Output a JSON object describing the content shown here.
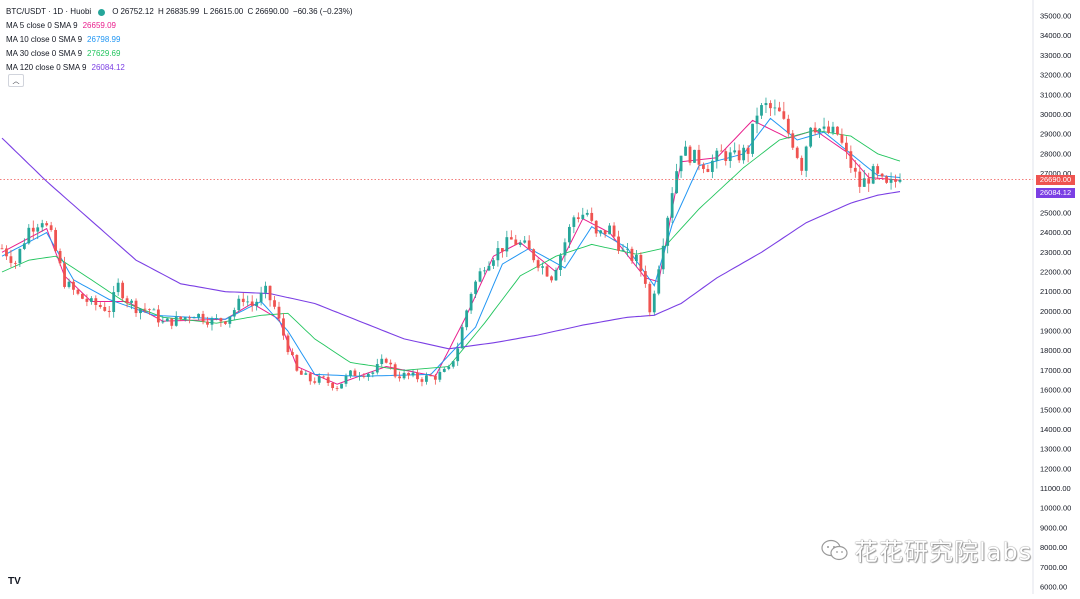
{
  "header": {
    "symbol": "BTC/USDT · 1D · Huobi",
    "ohlc": {
      "open_label": "O",
      "open": "26752.12",
      "high_label": "H",
      "high": "26835.99",
      "low_label": "L",
      "low": "26615.00",
      "close_label": "C",
      "close": "26690.00",
      "change": "−60.36 (−0.23%)"
    }
  },
  "indicators": [
    {
      "label": "MA 5 close 0 SMA 9",
      "value": "26659.09",
      "color": "#e91e8c"
    },
    {
      "label": "MA 10 close 0 SMA 9",
      "value": "26798.99",
      "color": "#2196f3"
    },
    {
      "label": "MA 30 close 0 SMA 9",
      "value": "27629.69",
      "color": "#22c55e"
    },
    {
      "label": "MA 120 close 0 SMA 9",
      "value": "26084.12",
      "color": "#7b3fe4"
    }
  ],
  "price_tags": [
    {
      "value": "26690.00",
      "color": "#ef5350"
    },
    {
      "value": "26084.12",
      "color": "#7b3fe4"
    }
  ],
  "collapse_icon": "chevron-up-icon",
  "watermark": "花花研究院labs",
  "logo_text": "TV",
  "colors": {
    "up": "#26a69a",
    "down": "#ef5350"
  },
  "chart_data": {
    "type": "candlestick",
    "ylim": [
      6000,
      35500
    ],
    "y_ticks": [
      "35000.00",
      "34000.00",
      "33000.00",
      "32000.00",
      "31000.00",
      "30000.00",
      "29000.00",
      "28000.00",
      "27000.00",
      "26000.00",
      "25000.00",
      "24000.00",
      "23000.00",
      "22000.00",
      "21000.00",
      "20000.00",
      "19000.00",
      "18000.00",
      "17000.00",
      "16000.00",
      "15000.00",
      "14000.00",
      "13000.00",
      "12000.00",
      "11000.00",
      "10000.00",
      "9000.00",
      "8000.00",
      "7000.00",
      "6000.00"
    ],
    "last_price": 26690.0,
    "path_points": [
      [
        0,
        23200
      ],
      [
        3,
        22500
      ],
      [
        6,
        24200
      ],
      [
        9,
        24700
      ],
      [
        11,
        23800
      ],
      [
        14,
        21500
      ],
      [
        17,
        20800
      ],
      [
        20,
        20400
      ],
      [
        24,
        20100
      ],
      [
        26,
        21300
      ],
      [
        28,
        20600
      ],
      [
        30,
        20200
      ],
      [
        33,
        20100
      ],
      [
        36,
        19400
      ],
      [
        40,
        19600
      ],
      [
        43,
        19900
      ],
      [
        47,
        19500
      ],
      [
        50,
        19600
      ],
      [
        52,
        20100
      ],
      [
        54,
        20700
      ],
      [
        56,
        20300
      ],
      [
        59,
        21000
      ],
      [
        61,
        20200
      ],
      [
        63,
        18800
      ],
      [
        66,
        16900
      ],
      [
        69,
        16500
      ],
      [
        72,
        16500
      ],
      [
        75,
        16200
      ],
      [
        78,
        16800
      ],
      [
        80,
        16900
      ],
      [
        83,
        16900
      ],
      [
        86,
        17600
      ],
      [
        88,
        16800
      ],
      [
        91,
        16700
      ],
      [
        94,
        16600
      ],
      [
        97,
        16700
      ],
      [
        100,
        17000
      ],
      [
        102,
        18200
      ],
      [
        105,
        21000
      ],
      [
        108,
        22400
      ],
      [
        111,
        23100
      ],
      [
        114,
        23600
      ],
      [
        117,
        23300
      ],
      [
        120,
        22500
      ],
      [
        123,
        21800
      ],
      [
        125,
        22900
      ],
      [
        128,
        24800
      ],
      [
        131,
        25000
      ],
      [
        133,
        23800
      ],
      [
        136,
        24200
      ],
      [
        139,
        23000
      ],
      [
        142,
        22600
      ],
      [
        144,
        21600
      ],
      [
        145,
        19900
      ],
      [
        147,
        22400
      ],
      [
        150,
        26200
      ],
      [
        152,
        28200
      ],
      [
        155,
        27800
      ],
      [
        158,
        27400
      ],
      [
        161,
        28000
      ],
      [
        164,
        27800
      ],
      [
        167,
        28200
      ],
      [
        169,
        30100
      ],
      [
        171,
        30400
      ],
      [
        174,
        30000
      ],
      [
        177,
        28600
      ],
      [
        179,
        27400
      ],
      [
        181,
        29600
      ],
      [
        184,
        29100
      ],
      [
        187,
        29000
      ],
      [
        189,
        27900
      ],
      [
        192,
        26400
      ],
      [
        195,
        27000
      ],
      [
        198,
        26300
      ],
      [
        201,
        26750
      ]
    ],
    "ma_lines": {
      "ma5": [
        [
          0,
          23000
        ],
        [
          10,
          24200
        ],
        [
          14,
          21800
        ],
        [
          20,
          20500
        ],
        [
          28,
          20500
        ],
        [
          36,
          19500
        ],
        [
          50,
          19600
        ],
        [
          56,
          20400
        ],
        [
          62,
          19600
        ],
        [
          66,
          17200
        ],
        [
          75,
          16300
        ],
        [
          86,
          17200
        ],
        [
          97,
          16700
        ],
        [
          104,
          19800
        ],
        [
          110,
          22800
        ],
        [
          116,
          23500
        ],
        [
          124,
          22000
        ],
        [
          130,
          24700
        ],
        [
          136,
          24000
        ],
        [
          144,
          21700
        ],
        [
          147,
          21500
        ],
        [
          152,
          27600
        ],
        [
          160,
          27800
        ],
        [
          168,
          29700
        ],
        [
          176,
          28800
        ],
        [
          182,
          29200
        ],
        [
          189,
          28100
        ],
        [
          194,
          26800
        ],
        [
          201,
          26659
        ]
      ],
      "ma10": [
        [
          0,
          22800
        ],
        [
          10,
          24000
        ],
        [
          16,
          21600
        ],
        [
          24,
          20600
        ],
        [
          34,
          19800
        ],
        [
          50,
          19600
        ],
        [
          58,
          20500
        ],
        [
          64,
          19000
        ],
        [
          70,
          16800
        ],
        [
          80,
          16700
        ],
        [
          96,
          16800
        ],
        [
          106,
          19200
        ],
        [
          112,
          22400
        ],
        [
          118,
          23200
        ],
        [
          126,
          22200
        ],
        [
          132,
          24300
        ],
        [
          140,
          23200
        ],
        [
          146,
          21300
        ],
        [
          150,
          24400
        ],
        [
          156,
          27400
        ],
        [
          166,
          28000
        ],
        [
          172,
          29800
        ],
        [
          178,
          28700
        ],
        [
          184,
          29100
        ],
        [
          190,
          28000
        ],
        [
          196,
          26900
        ],
        [
          201,
          26799
        ]
      ],
      "ma30": [
        [
          0,
          22000
        ],
        [
          6,
          22600
        ],
        [
          12,
          22800
        ],
        [
          20,
          21600
        ],
        [
          28,
          20400
        ],
        [
          36,
          19700
        ],
        [
          48,
          19400
        ],
        [
          58,
          19800
        ],
        [
          64,
          19900
        ],
        [
          70,
          18600
        ],
        [
          78,
          17400
        ],
        [
          90,
          17000
        ],
        [
          100,
          17200
        ],
        [
          108,
          19400
        ],
        [
          116,
          21800
        ],
        [
          124,
          22800
        ],
        [
          132,
          23400
        ],
        [
          142,
          22900
        ],
        [
          148,
          23200
        ],
        [
          156,
          25200
        ],
        [
          166,
          27300
        ],
        [
          174,
          28700
        ],
        [
          182,
          29200
        ],
        [
          190,
          28900
        ],
        [
          196,
          28000
        ],
        [
          201,
          27630
        ]
      ],
      "ma120": [
        [
          0,
          28800
        ],
        [
          10,
          26600
        ],
        [
          20,
          24600
        ],
        [
          30,
          22600
        ],
        [
          40,
          21400
        ],
        [
          50,
          21000
        ],
        [
          60,
          20900
        ],
        [
          70,
          20400
        ],
        [
          80,
          19500
        ],
        [
          90,
          18600
        ],
        [
          100,
          18100
        ],
        [
          110,
          18400
        ],
        [
          120,
          18800
        ],
        [
          130,
          19300
        ],
        [
          140,
          19700
        ],
        [
          146,
          19800
        ],
        [
          152,
          20400
        ],
        [
          160,
          21700
        ],
        [
          170,
          23000
        ],
        [
          180,
          24500
        ],
        [
          190,
          25500
        ],
        [
          196,
          25900
        ],
        [
          201,
          26084
        ]
      ]
    }
  }
}
